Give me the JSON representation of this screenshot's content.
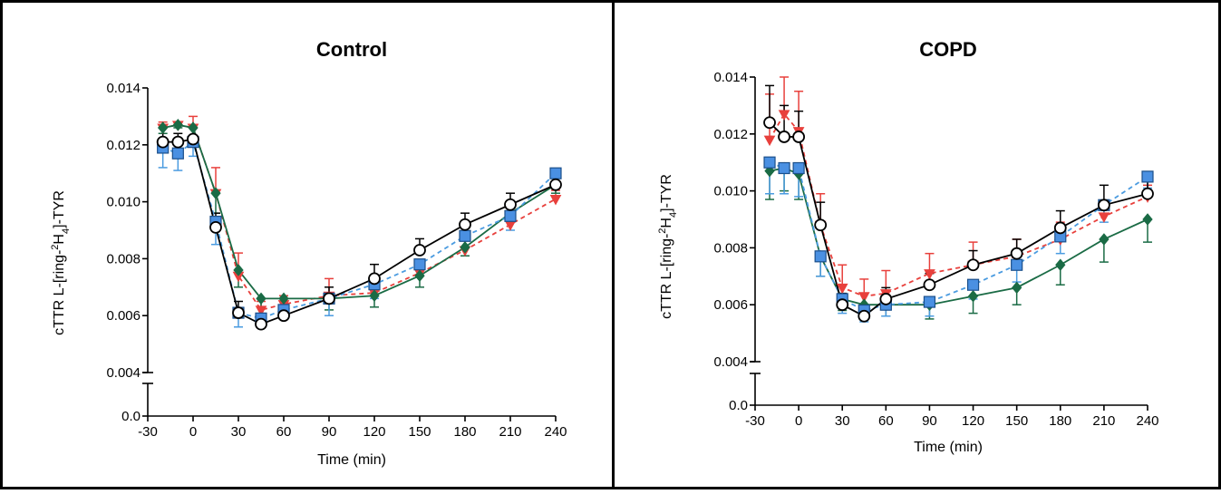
{
  "chart_data": [
    {
      "type": "line",
      "title": "Control",
      "xlabel": "Time (min)",
      "ylabel": {
        "prefix": "cTTR L-[ring-",
        "sup": "2",
        "mid": "H",
        "sub": "4",
        "suffix": "]-TYR"
      },
      "xlim": [
        -30,
        240
      ],
      "x_ticks": [
        -30,
        0,
        30,
        60,
        90,
        120,
        150,
        180,
        210,
        240
      ],
      "x_tick_labels": [
        "-30",
        "0",
        "30",
        "60",
        "90",
        "120",
        "150",
        "180",
        "210",
        "240"
      ],
      "y_axis_break": true,
      "ylim_lower": [
        0,
        0.0005
      ],
      "ylim_upper": [
        0.004,
        0.014
      ],
      "y_ticks": [
        0,
        0.004,
        0.006,
        0.008,
        0.01,
        0.012,
        0.014
      ],
      "y_tick_labels": [
        "0.0",
        "0.004",
        "0.006",
        "0.008",
        "0.010",
        "0.012",
        "0.014"
      ],
      "legend": "none",
      "grid": false,
      "series": [
        {
          "marker": "triangle-down",
          "line": "dashed",
          "color": "#e8403c",
          "fill": "#e8403c",
          "error_dir": "up",
          "x": [
            -20,
            -10,
            0,
            15,
            30,
            45,
            60,
            90,
            120,
            150,
            180,
            210,
            240
          ],
          "y": [
            0.0126,
            0.0127,
            0.0126,
            0.0103,
            0.0074,
            0.0062,
            0.0064,
            0.0067,
            0.0068,
            0.0075,
            0.0083,
            0.0092,
            0.0101
          ],
          "err": [
            0.0002,
            0.0001,
            0.0004,
            0.0009,
            0.0008,
            0.0003,
            0.0003,
            0.0006,
            0.0005,
            0.0004,
            0.0004,
            0.0004,
            0.0003
          ]
        },
        {
          "marker": "diamond",
          "line": "solid",
          "color": "#1a6b45",
          "fill": "#1a6b45",
          "error_dir": "down",
          "x": [
            -20,
            -10,
            0,
            15,
            30,
            45,
            60,
            90,
            120,
            150,
            180,
            210,
            240
          ],
          "y": [
            0.0126,
            0.0127,
            0.0126,
            0.0103,
            0.0076,
            0.0066,
            0.0066,
            0.0066,
            0.0067,
            0.0074,
            0.0084,
            0.0096,
            0.0106
          ],
          "err": [
            0.0002,
            0.0001,
            0.0004,
            0.0007,
            0.0006,
            0.0003,
            0.0003,
            0.0004,
            0.0004,
            0.0004,
            0.0003,
            0.0003,
            0.0003
          ]
        },
        {
          "marker": "square",
          "line": "dashed",
          "color": "#4a9be0",
          "fill": "#4a90e2",
          "error_dir": "down",
          "x": [
            -20,
            -10,
            0,
            15,
            30,
            45,
            60,
            90,
            120,
            150,
            180,
            210,
            240
          ],
          "y": [
            0.0119,
            0.0117,
            0.0121,
            0.0093,
            0.0061,
            0.0059,
            0.0062,
            0.0066,
            0.0071,
            0.0078,
            0.0088,
            0.0095,
            0.011
          ],
          "err": [
            0.0007,
            0.0006,
            0.0005,
            0.0008,
            0.0005,
            0.0003,
            0.0003,
            0.0006,
            0.0005,
            0.0004,
            0.0004,
            0.0005,
            0.0003
          ]
        },
        {
          "marker": "circle-open",
          "line": "solid",
          "color": "#000000",
          "fill": "#ffffff",
          "error_dir": "up",
          "x": [
            -20,
            -10,
            0,
            15,
            30,
            45,
            60,
            90,
            120,
            150,
            180,
            210,
            240
          ],
          "y": [
            0.0121,
            0.0121,
            0.0122,
            0.0091,
            0.0061,
            0.0057,
            0.006,
            0.0066,
            0.0073,
            0.0083,
            0.0092,
            0.0099,
            0.0106
          ],
          "err": [
            0.0005,
            0.0003,
            0.0005,
            0.0005,
            0.0004,
            0.0002,
            0.0003,
            0.0004,
            0.0005,
            0.0004,
            0.0004,
            0.0004,
            0.0003
          ]
        }
      ]
    },
    {
      "type": "line",
      "title": "COPD",
      "xlabel": "Time (min)",
      "ylabel": {
        "prefix": "cTTR L-[ring-",
        "sup": "2",
        "mid": "H",
        "sub": "4",
        "suffix": "]-TYR"
      },
      "xlim": [
        -30,
        240
      ],
      "x_ticks": [
        -30,
        0,
        30,
        60,
        90,
        120,
        150,
        180,
        210,
        240
      ],
      "x_tick_labels": [
        "-30",
        "0",
        "30",
        "60",
        "90",
        "120",
        "150",
        "180",
        "210",
        "240"
      ],
      "y_axis_break": true,
      "ylim_lower": [
        0,
        0.0005
      ],
      "ylim_upper": [
        0.004,
        0.014
      ],
      "y_ticks": [
        0,
        0.004,
        0.006,
        0.008,
        0.01,
        0.012,
        0.014
      ],
      "y_tick_labels": [
        "0.0",
        "0.004",
        "0.006",
        "0.008",
        "0.010",
        "0.012",
        "0.014"
      ],
      "legend": "none",
      "grid": false,
      "series": [
        {
          "marker": "triangle-down",
          "line": "dashed",
          "color": "#e8403c",
          "fill": "#e8403c",
          "error_dir": "up",
          "x": [
            -20,
            -10,
            0,
            15,
            30,
            45,
            60,
            90,
            120,
            150,
            180,
            210,
            240
          ],
          "y": [
            0.0118,
            0.0127,
            0.0121,
            0.0088,
            0.0066,
            0.0063,
            0.0064,
            0.0071,
            0.0074,
            0.0077,
            0.0083,
            0.0091,
            0.0098
          ],
          "err": [
            0.0016,
            0.0013,
            0.0014,
            0.0011,
            0.0008,
            0.0006,
            0.0008,
            0.0007,
            0.0008,
            0.0006,
            0.0006,
            0.0005,
            0.0004
          ]
        },
        {
          "marker": "diamond",
          "line": "solid",
          "color": "#1a6b45",
          "fill": "#1a6b45",
          "error_dir": "down",
          "x": [
            -20,
            -10,
            0,
            15,
            30,
            45,
            60,
            90,
            120,
            150,
            180,
            210,
            240
          ],
          "y": [
            0.0107,
            0.0108,
            0.0106,
            0.0077,
            0.0062,
            0.006,
            0.006,
            0.006,
            0.0063,
            0.0066,
            0.0074,
            0.0083,
            0.009
          ],
          "err": [
            0.001,
            0.0008,
            0.0009,
            0.0007,
            0.0004,
            0.0004,
            0.0004,
            0.0005,
            0.0006,
            0.0006,
            0.0007,
            0.0008,
            0.0008
          ]
        },
        {
          "marker": "square",
          "line": "dashed",
          "color": "#4a9be0",
          "fill": "#4a90e2",
          "error_dir": "down",
          "x": [
            -20,
            -10,
            0,
            15,
            30,
            45,
            60,
            90,
            120,
            150,
            180,
            210,
            240
          ],
          "y": [
            0.011,
            0.0108,
            0.0108,
            0.0077,
            0.0062,
            0.0058,
            0.006,
            0.0061,
            0.0067,
            0.0074,
            0.0084,
            0.0095,
            0.0105
          ],
          "err": [
            0.0011,
            0.0009,
            0.001,
            0.0007,
            0.0005,
            0.0004,
            0.0004,
            0.0005,
            0.0005,
            0.0006,
            0.0006,
            0.0006,
            0.0004
          ]
        },
        {
          "marker": "circle-open",
          "line": "solid",
          "color": "#000000",
          "fill": "#ffffff",
          "error_dir": "up",
          "x": [
            -20,
            -10,
            0,
            15,
            30,
            45,
            60,
            90,
            120,
            150,
            180,
            210,
            240
          ],
          "y": [
            0.0124,
            0.0119,
            0.0119,
            0.0088,
            0.006,
            0.0056,
            0.0062,
            0.0067,
            0.0074,
            0.0078,
            0.0087,
            0.0095,
            0.0099
          ],
          "err": [
            0.0013,
            0.0011,
            0.0009,
            0.0008,
            0.0004,
            0.0003,
            0.0004,
            0.0004,
            0.0005,
            0.0005,
            0.0006,
            0.0007,
            0.0006
          ]
        }
      ]
    }
  ]
}
